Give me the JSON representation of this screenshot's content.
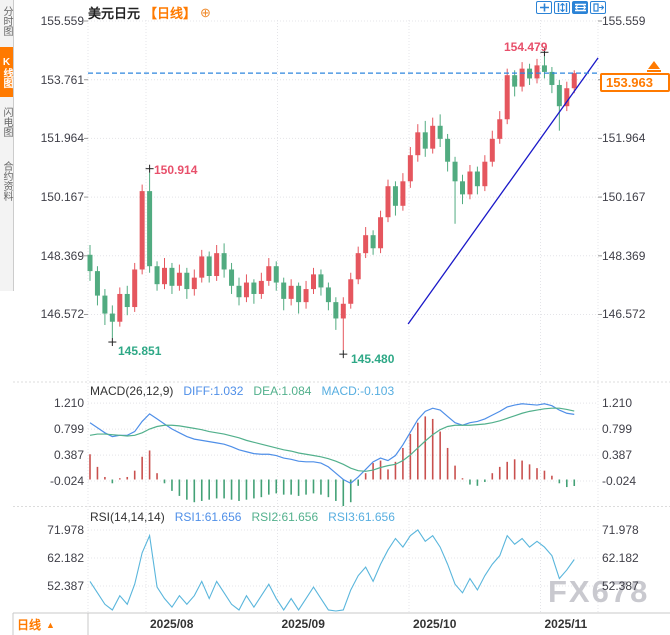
{
  "window": {
    "watermark": "FX678"
  },
  "sidebar": {
    "items": [
      {
        "label": "分时图",
        "active": false
      },
      {
        "label": "K线图",
        "active": true
      },
      {
        "label": "闪电图",
        "active": false
      },
      {
        "label": "合约资料",
        "active": false
      }
    ]
  },
  "header": {
    "symbol": "美元日元",
    "period_tag": "【日线】"
  },
  "toolbar": {
    "icons": [
      "crosshair",
      "y-axis-scale",
      "x-axis-scale",
      "exit-fullscreen"
    ]
  },
  "main_chart": {
    "y_axis_left": [
      "155.559",
      "153.761",
      "151.964",
      "150.167",
      "148.369",
      "146.572"
    ],
    "y_axis_right": [
      "155.559",
      "151.964",
      "150.167",
      "148.369",
      "146.572"
    ],
    "current_price": "153.963",
    "annotations": {
      "high1": "150.914",
      "low1": "145.851",
      "low2": "145.480",
      "high2": "154.479"
    }
  },
  "macd_panel": {
    "title": "MACD(26,12,9)",
    "diff_label": "DIFF:1.032",
    "dea_label": "DEA:1.084",
    "macd_label": "MACD:-0.103",
    "axis": [
      "1.210",
      "0.799",
      "0.387",
      "-0.024"
    ]
  },
  "rsi_panel": {
    "title": "RSI(14,14,14)",
    "rsi1_label": "RSI1:61.656",
    "rsi2_label": "RSI2:61.656",
    "rsi3_label": "RSI3:61.656",
    "axis": [
      "71.978",
      "62.182",
      "52.387"
    ]
  },
  "x_axis": {
    "labels": [
      "2025/08",
      "2025/09",
      "2025/10",
      "2025/11"
    ]
  },
  "footer": {
    "period": "日线"
  },
  "colors": {
    "accent_orange": "#ff7a00",
    "candle_up": "#e5565e",
    "candle_down": "#51ab80",
    "high_label": "#e8506b",
    "low_label": "#2ea886",
    "dashed_line": "#2e86de",
    "trendline": "#1a18c8",
    "diff_line": "#4f8fe8",
    "dea_line": "#52b08c",
    "rsi_line": "#5ab6dc",
    "hist_up": "#c9504e",
    "hist_down": "#43a176",
    "toolbar_blue": "#2b83d6",
    "watermark": "#c9c9cf"
  },
  "chart_data": [
    {
      "type": "candlestick",
      "title": "美元日元 日线",
      "y_ticks": [
        155.559,
        153.761,
        151.964,
        150.167,
        148.369,
        146.572
      ],
      "x_tick_labels": [
        "2025/08",
        "2025/09",
        "2025/10",
        "2025/11"
      ],
      "current_price": 153.963,
      "dashed_line_price": 153.963,
      "trendline": {
        "x1_index": 42.7,
        "price1": 146.28,
        "x2_index": 68.2,
        "price2": 154.43
      },
      "markers": [
        {
          "index": 3,
          "price": 145.851,
          "kind": "low"
        },
        {
          "index": 8,
          "price": 150.914,
          "kind": "high"
        },
        {
          "index": 34,
          "price": 145.48,
          "kind": "low"
        },
        {
          "index": 61,
          "price": 154.479,
          "kind": "high"
        }
      ],
      "candles": [
        [
          148.4,
          148.7,
          147.6,
          147.9
        ],
        [
          147.9,
          148.05,
          146.85,
          147.15
        ],
        [
          147.15,
          147.35,
          146.25,
          146.6
        ],
        [
          146.6,
          146.85,
          145.851,
          146.35
        ],
        [
          146.35,
          147.4,
          146.2,
          147.2
        ],
        [
          147.2,
          147.45,
          146.55,
          146.8
        ],
        [
          146.8,
          148.15,
          146.65,
          147.95
        ],
        [
          147.95,
          150.55,
          147.8,
          150.35
        ],
        [
          150.35,
          150.914,
          147.85,
          148.05
        ],
        [
          148.05,
          148.2,
          147.3,
          147.5
        ],
        [
          147.5,
          148.3,
          147.35,
          148.0
        ],
        [
          148.0,
          148.15,
          147.2,
          147.45
        ],
        [
          147.45,
          148.1,
          147.3,
          147.85
        ],
        [
          147.85,
          148.0,
          147.05,
          147.35
        ],
        [
          147.35,
          147.95,
          147.15,
          147.7
        ],
        [
          147.7,
          148.55,
          147.55,
          148.35
        ],
        [
          148.35,
          148.5,
          147.55,
          147.75
        ],
        [
          147.75,
          148.7,
          147.6,
          148.45
        ],
        [
          148.45,
          148.75,
          147.7,
          147.95
        ],
        [
          147.95,
          148.15,
          147.2,
          147.45
        ],
        [
          147.45,
          147.7,
          146.85,
          147.1
        ],
        [
          147.1,
          147.8,
          146.95,
          147.55
        ],
        [
          147.55,
          147.65,
          146.9,
          147.2
        ],
        [
          147.2,
          147.85,
          147.05,
          147.6
        ],
        [
          147.6,
          148.3,
          147.45,
          148.05
        ],
        [
          148.05,
          148.2,
          147.3,
          147.55
        ],
        [
          147.55,
          147.7,
          146.7,
          147.05
        ],
        [
          147.05,
          147.65,
          146.85,
          147.45
        ],
        [
          147.45,
          147.55,
          146.6,
          146.95
        ],
        [
          146.95,
          147.6,
          146.75,
          147.35
        ],
        [
          147.35,
          148.0,
          147.2,
          147.8
        ],
        [
          147.8,
          147.95,
          147.15,
          147.4
        ],
        [
          147.4,
          147.55,
          146.7,
          146.95
        ],
        [
          146.95,
          147.1,
          146.1,
          146.45
        ],
        [
          146.45,
          147.1,
          145.48,
          146.9
        ],
        [
          146.9,
          147.85,
          146.75,
          147.65
        ],
        [
          147.65,
          148.65,
          147.5,
          148.45
        ],
        [
          148.45,
          149.25,
          148.3,
          149.0
        ],
        [
          149.0,
          149.15,
          148.4,
          148.6
        ],
        [
          148.6,
          149.75,
          148.45,
          149.55
        ],
        [
          149.55,
          150.7,
          149.4,
          150.5
        ],
        [
          150.5,
          150.65,
          149.6,
          149.9
        ],
        [
          149.9,
          150.9,
          149.75,
          150.65
        ],
        [
          150.65,
          151.7,
          150.45,
          151.45
        ],
        [
          151.45,
          152.4,
          151.25,
          152.15
        ],
        [
          152.15,
          152.5,
          151.4,
          151.65
        ],
        [
          151.65,
          152.6,
          151.5,
          152.35
        ],
        [
          152.35,
          152.7,
          151.7,
          151.95
        ],
        [
          151.95,
          152.1,
          150.95,
          151.25
        ],
        [
          151.25,
          151.4,
          149.35,
          150.65
        ],
        [
          150.65,
          150.85,
          149.95,
          150.25
        ],
        [
          150.25,
          151.15,
          150.1,
          150.95
        ],
        [
          150.95,
          151.1,
          150.25,
          150.5
        ],
        [
          150.5,
          151.45,
          150.35,
          151.25
        ],
        [
          151.25,
          152.2,
          151.1,
          151.95
        ],
        [
          151.95,
          152.8,
          151.8,
          152.55
        ],
        [
          152.55,
          154.1,
          152.4,
          153.9
        ],
        [
          153.9,
          154.05,
          153.25,
          153.55
        ],
        [
          153.55,
          154.3,
          153.4,
          154.1
        ],
        [
          154.1,
          154.25,
          153.6,
          153.8
        ],
        [
          153.8,
          154.4,
          153.65,
          154.2
        ],
        [
          154.2,
          154.479,
          153.8,
          154.0
        ],
        [
          154.0,
          154.15,
          153.35,
          153.6
        ],
        [
          153.6,
          153.75,
          152.2,
          152.95
        ],
        [
          152.95,
          153.7,
          152.8,
          153.5
        ],
        [
          153.5,
          154.05,
          153.35,
          153.963
        ]
      ]
    },
    {
      "type": "macd",
      "params": "26,12,9",
      "last": {
        "diff": 1.032,
        "dea": 1.084,
        "macd": -0.103
      },
      "y_ticks": [
        1.21,
        0.799,
        0.387,
        -0.024
      ],
      "diff": [
        0.9,
        0.82,
        0.74,
        0.68,
        0.7,
        0.7,
        0.76,
        0.92,
        1.04,
        0.96,
        0.88,
        0.8,
        0.74,
        0.68,
        0.64,
        0.62,
        0.6,
        0.58,
        0.56,
        0.52,
        0.47,
        0.44,
        0.41,
        0.4,
        0.4,
        0.38,
        0.34,
        0.32,
        0.29,
        0.28,
        0.28,
        0.26,
        0.2,
        0.1,
        0.0,
        -0.06,
        0.04,
        0.16,
        0.28,
        0.34,
        0.3,
        0.38,
        0.55,
        0.75,
        0.95,
        1.08,
        1.13,
        1.1,
        1.0,
        0.9,
        0.86,
        0.9,
        0.92,
        0.96,
        1.02,
        1.08,
        1.15,
        1.18,
        1.2,
        1.19,
        1.18,
        1.2,
        1.17,
        1.1,
        1.05,
        1.032
      ],
      "dea": [
        0.7,
        0.72,
        0.72,
        0.71,
        0.7,
        0.69,
        0.7,
        0.74,
        0.8,
        0.84,
        0.86,
        0.86,
        0.85,
        0.83,
        0.81,
        0.79,
        0.76,
        0.74,
        0.72,
        0.69,
        0.66,
        0.62,
        0.59,
        0.56,
        0.53,
        0.5,
        0.47,
        0.45,
        0.42,
        0.4,
        0.38,
        0.36,
        0.33,
        0.29,
        0.24,
        0.18,
        0.14,
        0.13,
        0.15,
        0.19,
        0.22,
        0.24,
        0.3,
        0.39,
        0.5,
        0.61,
        0.71,
        0.79,
        0.84,
        0.86,
        0.86,
        0.86,
        0.87,
        0.88,
        0.9,
        0.93,
        0.97,
        1.01,
        1.05,
        1.08,
        1.1,
        1.12,
        1.13,
        1.13,
        1.11,
        1.084
      ],
      "hist": [
        0.4,
        0.2,
        0.04,
        -0.06,
        0.02,
        0.04,
        0.14,
        0.36,
        0.46,
        0.1,
        -0.06,
        -0.18,
        -0.26,
        -0.32,
        -0.36,
        -0.34,
        -0.32,
        -0.3,
        -0.3,
        -0.32,
        -0.34,
        -0.32,
        -0.3,
        -0.28,
        -0.24,
        -0.22,
        -0.24,
        -0.24,
        -0.26,
        -0.24,
        -0.22,
        -0.24,
        -0.28,
        -0.34,
        -0.42,
        -0.36,
        -0.1,
        0.1,
        0.26,
        0.3,
        0.16,
        0.28,
        0.5,
        0.72,
        0.9,
        1.0,
        0.96,
        0.76,
        0.5,
        0.22,
        0.02,
        -0.08,
        -0.1,
        -0.04,
        0.1,
        0.2,
        0.28,
        0.32,
        0.3,
        0.24,
        0.18,
        0.14,
        0.06,
        -0.06,
        -0.12,
        -0.103
      ]
    },
    {
      "type": "rsi",
      "params": "14,14,14",
      "last": 61.656,
      "y_ticks": [
        71.978,
        62.182,
        52.387
      ],
      "values": [
        54,
        50,
        46,
        44,
        49,
        46,
        53,
        64,
        70,
        52,
        48,
        45,
        49,
        46,
        49,
        54,
        48,
        54,
        50,
        46,
        44,
        49,
        45,
        49,
        53,
        48,
        44,
        48,
        44,
        48,
        52,
        48,
        44,
        41,
        44,
        51,
        56,
        59,
        54,
        60,
        65,
        69,
        66,
        70,
        72,
        68,
        70,
        66,
        60,
        53,
        50,
        55,
        51,
        56,
        60,
        63,
        70,
        67,
        69,
        66,
        68,
        66,
        63,
        55,
        58,
        61.656
      ]
    }
  ]
}
